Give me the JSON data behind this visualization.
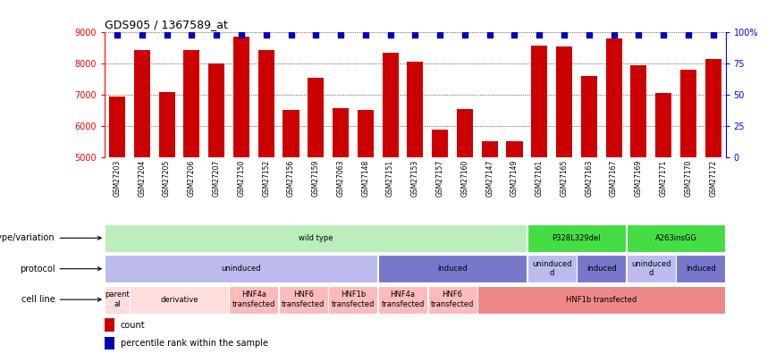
{
  "title": "GDS905 / 1367589_at",
  "samples": [
    "GSM27203",
    "GSM27204",
    "GSM27205",
    "GSM27206",
    "GSM27207",
    "GSM27150",
    "GSM27152",
    "GSM27156",
    "GSM27159",
    "GSM27063",
    "GSM27148",
    "GSM27151",
    "GSM27153",
    "GSM27157",
    "GSM27160",
    "GSM27147",
    "GSM27149",
    "GSM27161",
    "GSM27165",
    "GSM27163",
    "GSM27167",
    "GSM27169",
    "GSM27171",
    "GSM27170",
    "GSM27172"
  ],
  "counts": [
    6950,
    8440,
    7100,
    8430,
    8000,
    8880,
    8440,
    6530,
    7560,
    6570,
    6520,
    8350,
    8080,
    5880,
    6560,
    5520,
    5510,
    8590,
    8550,
    7620,
    8800,
    7960,
    7080,
    7800,
    8140
  ],
  "percentile_high": [
    true,
    true,
    true,
    true,
    true,
    true,
    true,
    true,
    true,
    true,
    true,
    true,
    true,
    true,
    true,
    true,
    false,
    true,
    true,
    true,
    true,
    true,
    true,
    true,
    true
  ],
  "ylim_left": [
    5000,
    9000
  ],
  "yticks_left": [
    5000,
    6000,
    7000,
    8000,
    9000
  ],
  "yticks_right_vals": [
    0,
    25,
    50,
    75,
    100
  ],
  "yticks_right_labels": [
    "0",
    "25",
    "50",
    "75",
    "100%"
  ],
  "bar_color": "#cc0000",
  "dot_color": "#0000bb",
  "genotype_row": {
    "label": "genotype/variation",
    "segments": [
      {
        "text": "wild type",
        "start": 0,
        "end": 17,
        "color": "#bbeebb"
      },
      {
        "text": "P328L329del",
        "start": 17,
        "end": 21,
        "color": "#44dd44"
      },
      {
        "text": "A263insGG",
        "start": 21,
        "end": 25,
        "color": "#44dd44"
      }
    ]
  },
  "protocol_row": {
    "label": "protocol",
    "segments": [
      {
        "text": "uninduced",
        "start": 0,
        "end": 11,
        "color": "#bbbbee"
      },
      {
        "text": "induced",
        "start": 11,
        "end": 17,
        "color": "#7777cc"
      },
      {
        "text": "uninduced\nd",
        "start": 17,
        "end": 19,
        "color": "#bbbbee"
      },
      {
        "text": "induced",
        "start": 19,
        "end": 21,
        "color": "#7777cc"
      },
      {
        "text": "uninduced\nd",
        "start": 21,
        "end": 23,
        "color": "#bbbbee"
      },
      {
        "text": "induced",
        "start": 23,
        "end": 25,
        "color": "#7777cc"
      }
    ]
  },
  "cellline_row": {
    "label": "cell line",
    "segments": [
      {
        "text": "parent\nal",
        "start": 0,
        "end": 1,
        "color": "#ffdddd"
      },
      {
        "text": "derivative",
        "start": 1,
        "end": 5,
        "color": "#ffdddd"
      },
      {
        "text": "HNF4a\ntransfected",
        "start": 5,
        "end": 7,
        "color": "#ffbbbb"
      },
      {
        "text": "HNF6\ntransfected",
        "start": 7,
        "end": 9,
        "color": "#ffbbbb"
      },
      {
        "text": "HNF1b\ntransfected",
        "start": 9,
        "end": 11,
        "color": "#ffbbbb"
      },
      {
        "text": "HNF4a\ntransfected",
        "start": 11,
        "end": 13,
        "color": "#ffbbbb"
      },
      {
        "text": "HNF6\ntransfected",
        "start": 13,
        "end": 15,
        "color": "#ffbbbb"
      },
      {
        "text": "HNF1b transfected",
        "start": 15,
        "end": 25,
        "color": "#ee8888"
      }
    ]
  },
  "legend_items": [
    {
      "color": "#cc0000",
      "label": "count"
    },
    {
      "color": "#0000bb",
      "label": "percentile rank within the sample"
    }
  ]
}
